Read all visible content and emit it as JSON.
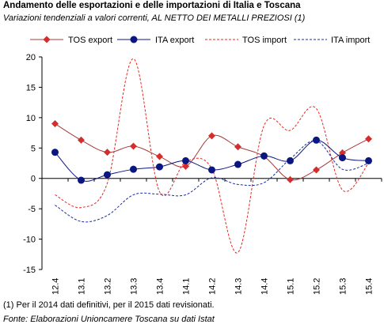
{
  "title": "Andamento delle esportazioni e delle importazioni di Italia e Toscana",
  "subtitle": "Variazioni tendenziali a valori correnti, AL NETTO DEI METALLI PREZIOSI (1)",
  "note": "(1) Per il 2014 dati definitivi, per il 2015 dati revisionati.",
  "source": "Fonte: Elaborazioni Unioncamere Toscana su dati Istat",
  "colors": {
    "tos_export": "#d62c2c",
    "ita_export": "#0b1780",
    "tos_import": "#e8261f",
    "ita_import": "#1a2a9a",
    "axis": "#000000",
    "tos_export_line": "#a83a3a"
  },
  "chart_data": {
    "type": "line",
    "categories": [
      "12.4",
      "13.1",
      "13.2",
      "13.3",
      "13.4",
      "14.1",
      "14.2",
      "14.3",
      "14.4",
      "15.1",
      "15.2",
      "15.3",
      "15.4"
    ],
    "ylim": [
      -15,
      20
    ],
    "yticks": [
      -15,
      -10,
      -5,
      0,
      5,
      10,
      15,
      20
    ],
    "grid": false,
    "legend_position": "top",
    "series": [
      {
        "name": "TOS export",
        "style": "solid-diamond",
        "values": [
          9.0,
          6.3,
          4.3,
          5.3,
          3.6,
          2.0,
          7.0,
          5.2,
          3.6,
          -0.2,
          1.4,
          4.2,
          6.5
        ]
      },
      {
        "name": "ITA export",
        "style": "solid-circle",
        "values": [
          4.3,
          -0.3,
          0.6,
          1.5,
          1.9,
          2.9,
          1.4,
          2.3,
          3.7,
          2.9,
          6.3,
          3.4,
          2.9
        ]
      },
      {
        "name": "TOS import",
        "style": "dashed",
        "values": [
          -2.7,
          -4.8,
          -0.8,
          19.7,
          -2.2,
          2.7,
          1.6,
          -12.2,
          8.7,
          7.9,
          11.5,
          -1.9,
          2.5
        ]
      },
      {
        "name": "ITA import",
        "style": "dashed",
        "values": [
          -4.4,
          -7.1,
          -6.1,
          -2.7,
          -2.6,
          -2.7,
          0.1,
          -1.0,
          -0.7,
          3.2,
          6.2,
          1.5,
          2.5
        ]
      }
    ]
  }
}
